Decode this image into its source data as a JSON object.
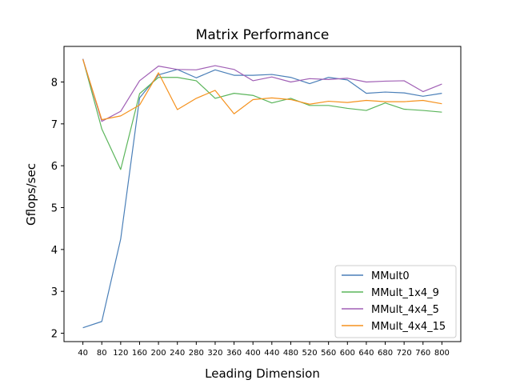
{
  "chart_data": {
    "type": "line",
    "title": "Matrix Performance",
    "xlabel": "Leading Dimension",
    "ylabel": "Gflops/sec",
    "x": [
      40,
      80,
      120,
      160,
      200,
      240,
      280,
      320,
      360,
      400,
      440,
      480,
      520,
      560,
      600,
      640,
      680,
      720,
      760,
      800
    ],
    "yticks": [
      2,
      3,
      4,
      5,
      6,
      7,
      8
    ],
    "ylim": [
      1.8,
      8.85
    ],
    "xlim": [
      0,
      840
    ],
    "grid": false,
    "legend_position": "lower-right",
    "series": [
      {
        "name": "MMult0",
        "color": "#4a7fb8",
        "values": [
          2.13,
          2.28,
          4.25,
          7.62,
          8.17,
          8.3,
          8.1,
          8.29,
          8.16,
          8.16,
          8.18,
          8.11,
          7.96,
          8.11,
          8.05,
          7.73,
          7.76,
          7.74,
          7.66,
          7.73
        ]
      },
      {
        "name": "MMult_1x4_9",
        "color": "#5bb55b",
        "values": [
          8.55,
          6.88,
          5.91,
          7.72,
          8.11,
          8.11,
          8.03,
          7.61,
          7.73,
          7.68,
          7.5,
          7.61,
          7.44,
          7.44,
          7.37,
          7.32,
          7.5,
          7.35,
          7.32,
          7.28
        ]
      },
      {
        "name": "MMult_4x4_5",
        "color": "#a05fb5",
        "values": [
          8.55,
          7.06,
          7.3,
          8.03,
          8.38,
          8.3,
          8.29,
          8.39,
          8.3,
          8.03,
          8.12,
          8.0,
          8.08,
          8.06,
          8.09,
          8.0,
          8.02,
          8.03,
          7.77,
          7.95
        ]
      },
      {
        "name": "MMult_4x4_15",
        "color": "#f5921e",
        "values": [
          8.54,
          7.1,
          7.19,
          7.45,
          8.22,
          7.34,
          7.61,
          7.8,
          7.24,
          7.58,
          7.62,
          7.58,
          7.47,
          7.54,
          7.51,
          7.56,
          7.53,
          7.53,
          7.56,
          7.48
        ]
      }
    ]
  }
}
